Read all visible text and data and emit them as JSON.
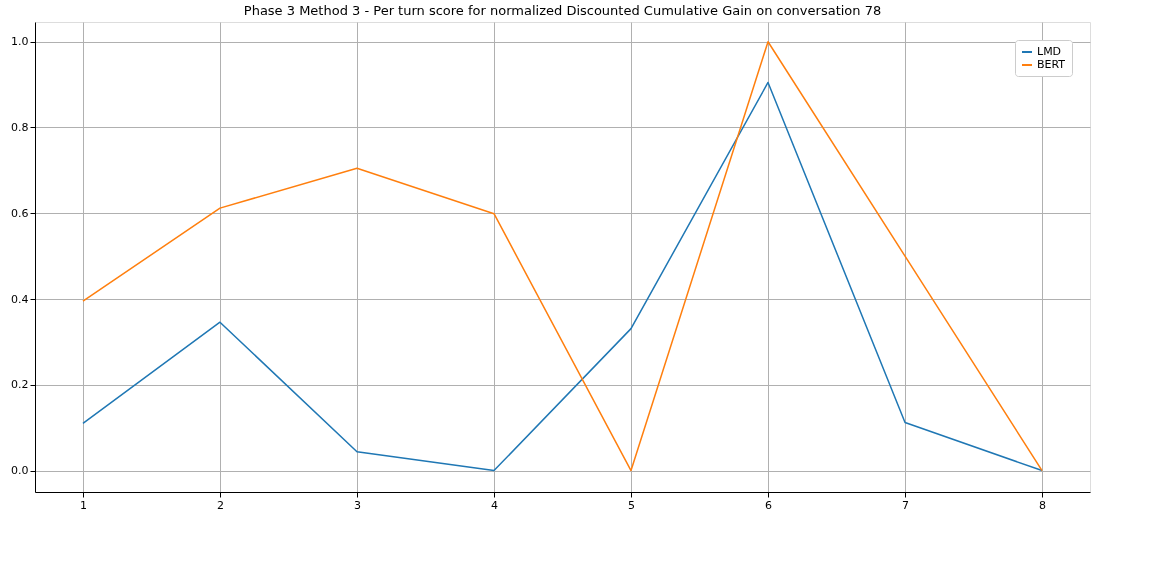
{
  "chart_data": {
    "type": "line",
    "title": "Phase 3 Method 3 - Per turn score for normalized Discounted Cumulative Gain on conversation 78",
    "x": [
      1,
      2,
      3,
      4,
      5,
      6,
      7,
      8
    ],
    "series": [
      {
        "name": "LMD",
        "color": "#1f77b4",
        "values": [
          0.11,
          0.346,
          0.044,
          0.0,
          0.331,
          0.905,
          0.112,
          0.0
        ]
      },
      {
        "name": "BERT",
        "color": "#ff7f0e",
        "values": [
          0.395,
          0.612,
          0.705,
          0.599,
          0.0,
          1.0,
          0.5,
          0.0
        ]
      }
    ],
    "xlim": [
      0.65,
      8.35
    ],
    "xticks": [
      1,
      2,
      3,
      4,
      5,
      6,
      7,
      8
    ],
    "ylim": [
      -0.05,
      1.046
    ],
    "yticks": [
      {
        "value": 0,
        "label": "0.0"
      },
      0.2,
      0.4,
      0.6,
      0.8,
      {
        "value": 1,
        "label": "1.0"
      }
    ],
    "grid": true,
    "legend": "top right",
    "marker": "none",
    "line_style": "solid"
  }
}
